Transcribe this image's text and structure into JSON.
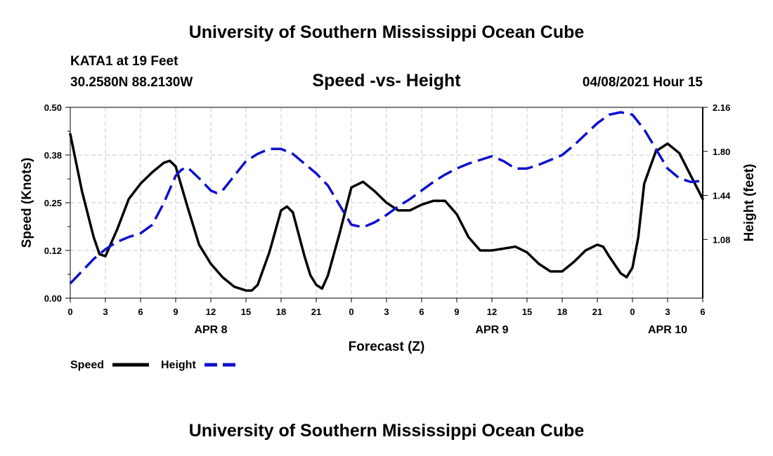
{
  "header": {
    "top_title": "University of Southern Mississippi Ocean Cube",
    "station": "KATA1 at 19 Feet",
    "coords": "30.2580N  88.2130W",
    "subtitle": "Speed -vs- Height",
    "run_date": "04/08/2021 Hour 15",
    "bottom_title": "University of Southern Mississippi Ocean Cube"
  },
  "chart_data": {
    "type": "line",
    "title": "Speed -vs- Height",
    "xlabel": "Forecast (Z)",
    "ylabel": "Speed (Knots)",
    "y2label": "Height (feet)",
    "x_unit": "hours from 04/08 00Z",
    "xlim": [
      0,
      54
    ],
    "ylim": [
      0,
      0.5
    ],
    "y2lim": [
      0.6,
      2.16
    ],
    "x_ticks": [
      0,
      3,
      6,
      9,
      12,
      15,
      18,
      21,
      24,
      27,
      30,
      33,
      36,
      39,
      42,
      45,
      48,
      51,
      54
    ],
    "x_tick_labels": [
      "0",
      "3",
      "6",
      "9",
      "12",
      "15",
      "18",
      "21",
      "0",
      "3",
      "6",
      "9",
      "12",
      "15",
      "18",
      "21",
      "0",
      "3",
      "6"
    ],
    "y_ticks": [
      0,
      0.125,
      0.25,
      0.375,
      0.5
    ],
    "y_tick_labels": [
      "0.00",
      "0.12",
      "0.25",
      "0.38",
      "0.50"
    ],
    "y2_ticks": [
      1.08,
      1.44,
      1.8,
      2.16
    ],
    "y2_tick_labels": [
      "1.08",
      "1.44",
      "1.80",
      "2.16"
    ],
    "date_labels": [
      {
        "x": 12,
        "text": "APR 8"
      },
      {
        "x": 36,
        "text": "APR 9"
      },
      {
        "x": 51,
        "text": "APR 10"
      }
    ],
    "grid": true,
    "legend": "bottom-left",
    "series": [
      {
        "name": "Speed",
        "axis": "left",
        "color": "#000000",
        "style": "solid",
        "x": [
          0,
          1,
          2,
          2.5,
          3,
          4,
          5,
          6,
          7,
          8,
          8.5,
          9,
          10,
          11,
          12,
          13,
          14,
          15,
          15.5,
          16,
          17,
          18,
          18.5,
          19,
          20,
          20.5,
          21,
          21.5,
          22,
          23,
          24,
          25,
          26,
          27,
          28,
          29,
          30,
          31,
          32,
          33,
          34,
          35,
          36,
          37,
          38,
          39,
          40,
          41,
          42,
          43,
          43.5,
          44,
          45,
          45.5,
          46,
          47,
          47.5,
          48,
          48.5,
          49,
          50,
          51,
          52,
          53,
          54
        ],
        "values": [
          0.43,
          0.28,
          0.16,
          0.115,
          0.11,
          0.18,
          0.26,
          0.3,
          0.33,
          0.355,
          0.36,
          0.345,
          0.24,
          0.14,
          0.09,
          0.055,
          0.03,
          0.02,
          0.02,
          0.035,
          0.12,
          0.23,
          0.24,
          0.225,
          0.11,
          0.06,
          0.035,
          0.025,
          0.06,
          0.17,
          0.29,
          0.305,
          0.28,
          0.25,
          0.23,
          0.23,
          0.245,
          0.255,
          0.255,
          0.22,
          0.16,
          0.125,
          0.125,
          0.13,
          0.135,
          0.12,
          0.09,
          0.07,
          0.07,
          0.095,
          0.11,
          0.125,
          0.14,
          0.135,
          0.11,
          0.065,
          0.055,
          0.08,
          0.16,
          0.3,
          0.385,
          0.405,
          0.38,
          0.32,
          0.26
        ]
      },
      {
        "name": "Height",
        "axis": "right",
        "color": "#1010cc",
        "style": "dashed",
        "x": [
          0,
          1,
          2,
          3,
          4,
          5,
          6,
          7,
          8,
          9,
          9.5,
          10,
          11,
          12,
          12.5,
          13,
          14,
          15,
          16,
          17,
          18,
          19,
          20,
          21,
          22,
          23,
          23.5,
          24,
          25,
          26,
          27,
          28,
          29,
          30,
          31,
          32,
          33,
          34,
          35,
          36,
          37,
          38,
          39,
          40,
          41,
          42,
          43,
          44,
          45,
          46,
          47,
          48,
          49,
          50,
          51,
          52,
          53,
          54
        ],
        "values": [
          0.72,
          0.82,
          0.92,
          1.0,
          1.06,
          1.1,
          1.13,
          1.2,
          1.38,
          1.6,
          1.65,
          1.67,
          1.58,
          1.48,
          1.46,
          1.48,
          1.6,
          1.72,
          1.78,
          1.82,
          1.82,
          1.78,
          1.7,
          1.62,
          1.52,
          1.36,
          1.28,
          1.2,
          1.18,
          1.22,
          1.28,
          1.35,
          1.41,
          1.48,
          1.55,
          1.61,
          1.66,
          1.7,
          1.73,
          1.76,
          1.72,
          1.66,
          1.66,
          1.69,
          1.73,
          1.77,
          1.85,
          1.94,
          2.03,
          2.1,
          2.12,
          2.1,
          1.98,
          1.82,
          1.66,
          1.58,
          1.55,
          1.56
        ]
      }
    ]
  },
  "legend": {
    "speed_label": "Speed",
    "height_label": "Height"
  }
}
